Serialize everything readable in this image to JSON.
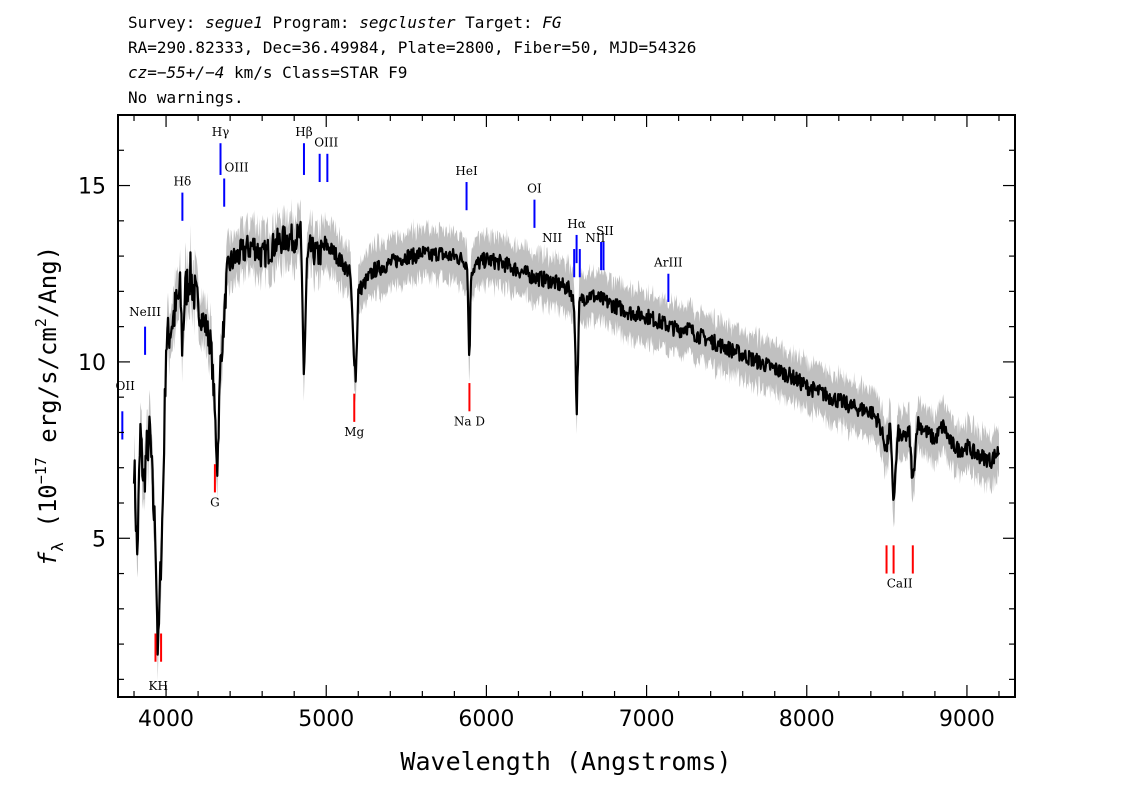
{
  "header": {
    "line1": {
      "survey_label": "Survey: ",
      "survey_value": "segue1",
      "program_label": " Program: ",
      "program_value": "segcluster",
      "target_label": " Target: ",
      "target_value": "FG"
    },
    "line2": "RA=290.82333, Dec=36.49984, Plate=2800, Fiber=50, MJD=54326",
    "line3": {
      "cz_label": "cz",
      "cz_value": "=−55+/−4",
      "rest": " km/s Class=STAR F9"
    },
    "line4": "No warnings."
  },
  "colors": {
    "flux": "#000000",
    "error_band": "#c0c0c0",
    "emission_line": "#0000ff",
    "absorption_line": "#ff0000",
    "frame": "#000000"
  },
  "chart_data": {
    "type": "line",
    "xlabel": "Wavelength (Angstroms)",
    "ylabel": {
      "f": "f",
      "sub": "λ",
      "open": " (10",
      "exp": "−17",
      "mid": " erg/s/cm",
      "exp2": "2",
      "close": "/Ang)"
    },
    "xlim": [
      3700,
      9300
    ],
    "ylim": [
      0.5,
      17
    ],
    "xticks": [
      4000,
      5000,
      6000,
      7000,
      8000,
      9000
    ],
    "yticks": [
      5,
      10,
      15
    ],
    "series": [
      {
        "role": "flux",
        "x": [
          3800,
          3820,
          3840,
          3860,
          3880,
          3900,
          3920,
          3935,
          3950,
          3965,
          3980,
          4000,
          4030,
          4060,
          4090,
          4100,
          4120,
          4150,
          4200,
          4250,
          4280,
          4300,
          4320,
          4340,
          4360,
          4380,
          4400,
          4450,
          4500,
          4550,
          4600,
          4650,
          4700,
          4750,
          4800,
          4840,
          4850,
          4861,
          4880,
          4900,
          4950,
          5000,
          5050,
          5100,
          5150,
          5170,
          5185,
          5200,
          5250,
          5300,
          5350,
          5400,
          5450,
          5500,
          5550,
          5600,
          5650,
          5700,
          5750,
          5800,
          5850,
          5880,
          5893,
          5905,
          5950,
          6000,
          6100,
          6200,
          6300,
          6400,
          6450,
          6500,
          6530,
          6550,
          6563,
          6580,
          6600,
          6650,
          6700,
          6800,
          6900,
          7000,
          7100,
          7200,
          7250,
          7300,
          7400,
          7500,
          7600,
          7700,
          7800,
          7900,
          8000,
          8100,
          8200,
          8300,
          8400,
          8450,
          8498,
          8520,
          8542,
          8570,
          8600,
          8640,
          8662,
          8690,
          8750,
          8800,
          8850,
          8900,
          8950,
          9000,
          9050,
          9100,
          9150,
          9200
        ],
        "y": [
          7.2,
          4.5,
          8.0,
          6.5,
          7.5,
          8.0,
          6.0,
          5.0,
          1.5,
          4.0,
          6.0,
          10.5,
          11.0,
          11.5,
          12.0,
          10.5,
          12.0,
          12.5,
          11.5,
          11.0,
          10.5,
          9.0,
          7.0,
          10.0,
          11.0,
          12.5,
          12.8,
          13.0,
          13.2,
          13.3,
          13.0,
          13.2,
          13.4,
          13.5,
          13.5,
          13.6,
          12.0,
          9.5,
          12.8,
          13.2,
          13.0,
          13.3,
          13.1,
          12.8,
          12.5,
          10.5,
          9.5,
          12.0,
          12.3,
          12.6,
          12.7,
          12.8,
          12.9,
          13.0,
          13.0,
          13.1,
          13.0,
          13.1,
          13.0,
          13.0,
          12.9,
          12.8,
          10.0,
          12.6,
          12.8,
          12.9,
          12.8,
          12.6,
          12.4,
          12.3,
          12.2,
          12.1,
          12.0,
          11.5,
          8.5,
          11.6,
          11.8,
          11.9,
          11.8,
          11.6,
          11.4,
          11.3,
          11.1,
          10.9,
          11.0,
          10.8,
          10.6,
          10.4,
          10.2,
          10.0,
          9.8,
          9.6,
          9.3,
          9.1,
          8.9,
          8.7,
          8.6,
          8.3,
          7.5,
          8.2,
          6.0,
          8.0,
          7.8,
          8.0,
          6.5,
          8.3,
          8.0,
          7.8,
          8.2,
          7.7,
          7.5,
          7.6,
          7.4,
          7.3,
          7.2,
          7.5
        ]
      }
    ],
    "line_markers": [
      {
        "label": "OII",
        "x": 3727,
        "type": "emission",
        "y1": 7.8,
        "y2": 8.6
      },
      {
        "label": "NeIII",
        "x": 3869,
        "type": "emission",
        "y1": 10.2,
        "y2": 11.0
      },
      {
        "label": "Hδ",
        "x": 4102,
        "type": "emission",
        "y1": 14.0,
        "y2": 14.8
      },
      {
        "label": "Hγ",
        "x": 4340,
        "type": "emission",
        "y1": 15.3,
        "y2": 16.2
      },
      {
        "label": "OIII",
        "x": 4363,
        "type": "emission",
        "y1": 14.4,
        "y2": 15.2
      },
      {
        "label": "Hβ",
        "x": 4861,
        "type": "emission",
        "y1": 15.3,
        "y2": 16.2
      },
      {
        "label": "OIII",
        "x": 4959,
        "type": "emission",
        "y1": 15.1,
        "y2": 15.9
      },
      {
        "label": "OIII",
        "x": 5007,
        "type": "emission",
        "y1": 15.1,
        "y2": 15.9
      },
      {
        "label": "HeI",
        "x": 5876,
        "type": "emission",
        "y1": 14.3,
        "y2": 15.1
      },
      {
        "label": "OI",
        "x": 6300,
        "type": "emission",
        "y1": 13.8,
        "y2": 14.6
      },
      {
        "label": "NII",
        "x": 6548,
        "type": "emission",
        "y1": 12.4,
        "y2": 13.2
      },
      {
        "label": "Hα",
        "x": 6563,
        "type": "emission",
        "y1": 12.8,
        "y2": 13.6
      },
      {
        "label": "NII",
        "x": 6583,
        "type": "emission",
        "y1": 12.4,
        "y2": 13.2
      },
      {
        "label": "SII",
        "x": 6716,
        "type": "emission",
        "y1": 12.6,
        "y2": 13.4
      },
      {
        "label": "SII",
        "x": 6731,
        "type": "emission",
        "y1": 12.6,
        "y2": 13.4
      },
      {
        "label": "ArIII",
        "x": 7136,
        "type": "emission",
        "y1": 11.7,
        "y2": 12.5
      },
      {
        "label": "K",
        "x": 3934,
        "type": "absorption",
        "y1": 1.5,
        "y2": 2.3
      },
      {
        "label": "H",
        "x": 3969,
        "type": "absorption",
        "y1": 1.5,
        "y2": 2.3
      },
      {
        "label": "G",
        "x": 4305,
        "type": "absorption",
        "y1": 6.3,
        "y2": 7.1
      },
      {
        "label": "Mg",
        "x": 5175,
        "type": "absorption",
        "y1": 8.3,
        "y2": 9.1
      },
      {
        "label": "Na D",
        "x": 5894,
        "type": "absorption",
        "y1": 8.6,
        "y2": 9.4
      },
      {
        "label": "CaII",
        "x": 8498,
        "type": "absorption",
        "y1": 4.0,
        "y2": 4.8
      },
      {
        "label": "CaII",
        "x": 8542,
        "type": "absorption",
        "y1": 4.0,
        "y2": 4.8
      },
      {
        "label": "CaII",
        "x": 8662,
        "type": "absorption",
        "y1": 4.0,
        "y2": 4.8
      }
    ],
    "line_labels": [
      {
        "text": "OII",
        "x": 3745,
        "y": 9.2
      },
      {
        "text": "NeIII",
        "x": 3869,
        "y": 11.3
      },
      {
        "text": "Hδ",
        "x": 4102,
        "y": 15.0
      },
      {
        "text": "Hγ",
        "x": 4340,
        "y": 16.4
      },
      {
        "text": "OIII",
        "x": 4440,
        "y": 15.4
      },
      {
        "text": "Hβ",
        "x": 4861,
        "y": 16.4
      },
      {
        "text": "OIII",
        "x": 5000,
        "y": 16.1
      },
      {
        "text": "HeI",
        "x": 5876,
        "y": 15.3
      },
      {
        "text": "OI",
        "x": 6300,
        "y": 14.8
      },
      {
        "text": "NII",
        "x": 6410,
        "y": 13.4
      },
      {
        "text": "Hα",
        "x": 6563,
        "y": 13.8
      },
      {
        "text": "SII",
        "x": 6740,
        "y": 13.6
      },
      {
        "text": "NII",
        "x": 6680,
        "y": 13.4
      },
      {
        "text": "ArIII",
        "x": 7136,
        "y": 12.7
      },
      {
        "text": "KH",
        "x": 3951,
        "y": 0.7
      },
      {
        "text": "G",
        "x": 4305,
        "y": 5.9
      },
      {
        "text": "Mg",
        "x": 5175,
        "y": 7.9
      },
      {
        "text": "Na  D",
        "x": 5894,
        "y": 8.2
      },
      {
        "text": "CaII",
        "x": 8580,
        "y": 3.6
      }
    ]
  }
}
